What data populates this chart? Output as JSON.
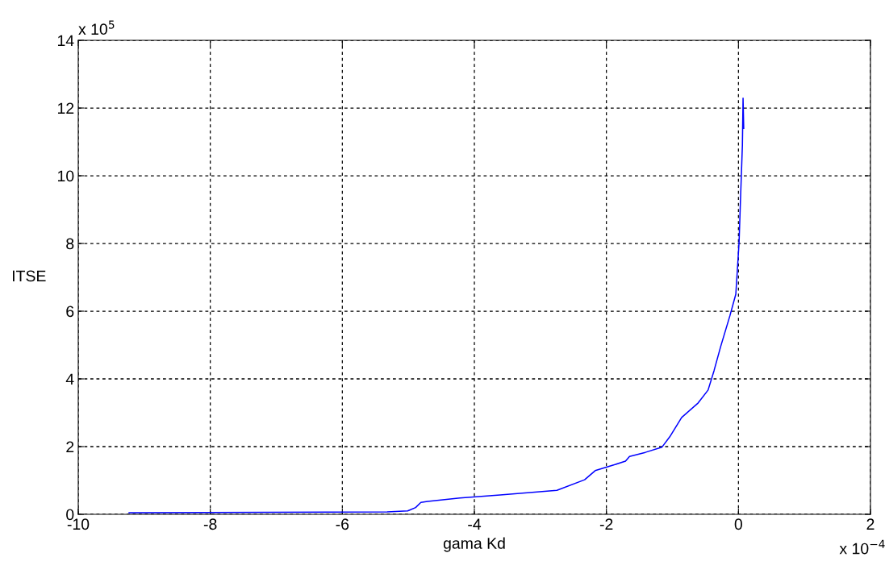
{
  "chart_data": {
    "type": "line",
    "xlabel": "gama Kd",
    "ylabel": "ITSE",
    "annotations": [
      "x 10$^{5}$",
      "x 10$^{−4}$"
    ],
    "x": [
      -9.23,
      -5.32,
      -5.01,
      -4.89,
      -4.81,
      -4.71,
      -4.22,
      -3.61,
      -2.75,
      -2.33,
      -2.17,
      -1.9,
      -1.71,
      -1.65,
      -1.41,
      -1.16,
      -1.04,
      -0.86,
      -0.61,
      -0.46,
      -0.37,
      -0.27,
      -0.13,
      -0.04,
      -0.02,
      0.01,
      0.03,
      0.06,
      0.07,
      0.08
    ],
    "series": [
      {
        "color": "#0000ff",
        "values": [
          0.05,
          0.07,
          0.1,
          0.2,
          0.35,
          0.38,
          0.48,
          0.57,
          0.71,
          1.02,
          1.29,
          1.45,
          1.57,
          1.71,
          1.83,
          1.98,
          2.29,
          2.86,
          3.29,
          3.67,
          4.24,
          4.95,
          5.86,
          6.5,
          7.1,
          8.05,
          9.24,
          10.9,
          12.29,
          11.4
        ]
      }
    ],
    "xlim": [
      -10,
      2
    ],
    "xticks": [
      -10,
      -8,
      -6,
      -4,
      -2,
      0,
      2
    ],
    "ylim": [
      0,
      14
    ],
    "yticks": [
      0,
      2,
      4,
      6,
      8,
      10,
      12,
      14
    ],
    "grid": true,
    "line_style": "solid",
    "marker": "none"
  }
}
